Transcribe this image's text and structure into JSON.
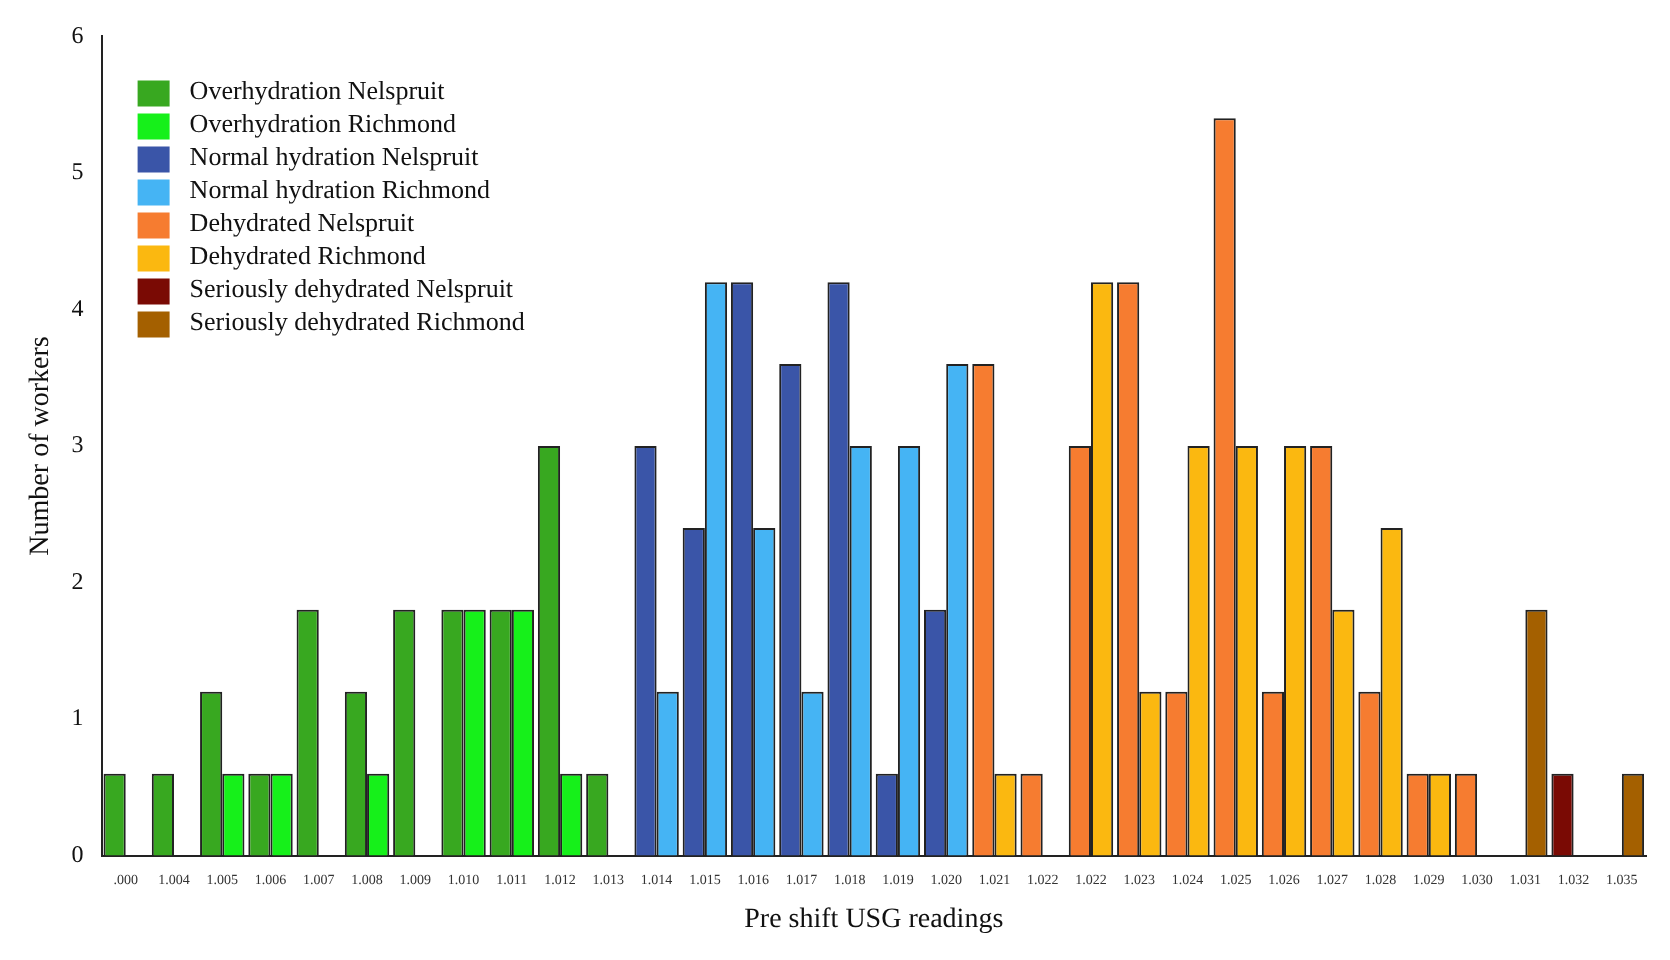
{
  "chart_data": {
    "type": "bar",
    "xlabel": "Pre shift USG readings",
    "ylabel": "Number of workers",
    "categories": [
      ".000",
      "1.004",
      "1.005",
      "1.006",
      "1.007",
      "1.008",
      "1.009",
      "1.010",
      "1.011",
      "1.012",
      "1.013",
      "1.014",
      "1.015",
      "1.016",
      "1.017",
      "1.018",
      "1.019",
      "1.020",
      "1.021",
      "1.022",
      "1.022",
      "1.023",
      "1.024",
      "1.025",
      "1.026",
      "1.027",
      "1.028",
      "1.029",
      "1.030",
      "1.031",
      "1.032",
      "1.035"
    ],
    "series": [
      {
        "name": "Overhydration Nelspruit",
        "color": "#38a820",
        "values": [
          0.6,
          0.6,
          1.2,
          0.6,
          1.8,
          1.2,
          1.8,
          1.8,
          1.8,
          3,
          0.6,
          null,
          null,
          null,
          null,
          null,
          null,
          null,
          null,
          null,
          null,
          null,
          null,
          null,
          null,
          null,
          null,
          null,
          null,
          null,
          null,
          null
        ]
      },
      {
        "name": "Overhydration Richmond",
        "color": "#16f01a",
        "values": [
          0,
          0,
          0.6,
          0.6,
          0,
          0.6,
          0,
          1.8,
          1.8,
          0.6,
          0,
          null,
          null,
          null,
          null,
          null,
          null,
          null,
          null,
          null,
          null,
          null,
          null,
          null,
          null,
          null,
          null,
          null,
          null,
          null,
          null,
          null
        ]
      },
      {
        "name": "Normal hydration Nelspruit",
        "color": "#3a55a8",
        "values": [
          null,
          null,
          null,
          null,
          null,
          null,
          null,
          null,
          null,
          null,
          null,
          3,
          2.4,
          4.2,
          3.6,
          4.2,
          0.6,
          1.8,
          null,
          null,
          null,
          null,
          null,
          null,
          null,
          null,
          null,
          null,
          null,
          null,
          null,
          null
        ]
      },
      {
        "name": "Normal hydration Richmond",
        "color": "#45b4f4",
        "values": [
          null,
          null,
          null,
          null,
          null,
          null,
          null,
          null,
          null,
          null,
          null,
          1.2,
          4.2,
          2.4,
          1.2,
          3,
          3,
          3.6,
          null,
          null,
          null,
          null,
          null,
          null,
          null,
          null,
          null,
          null,
          null,
          null,
          null,
          null
        ]
      },
      {
        "name": "Dehydrated Nelspruit",
        "color": "#f67c30",
        "values": [
          null,
          null,
          null,
          null,
          null,
          null,
          null,
          null,
          null,
          null,
          null,
          null,
          null,
          null,
          null,
          null,
          null,
          null,
          3.6,
          0.6,
          3,
          4.2,
          1.2,
          5.4,
          1.2,
          3,
          1.2,
          0.6,
          0.6,
          null,
          null,
          null
        ]
      },
      {
        "name": "Dehydrated Richmond",
        "color": "#fbb810",
        "values": [
          null,
          null,
          null,
          null,
          null,
          null,
          null,
          null,
          null,
          null,
          null,
          null,
          null,
          null,
          null,
          null,
          null,
          null,
          0.6,
          0,
          4.2,
          1.2,
          3,
          3,
          3,
          1.8,
          2.4,
          0.6,
          0,
          null,
          null,
          null
        ]
      },
      {
        "name": "Seriously dehydrated Nelspruit",
        "color": "#7a0a04",
        "values": [
          null,
          null,
          null,
          null,
          null,
          null,
          null,
          null,
          null,
          null,
          null,
          null,
          null,
          null,
          null,
          null,
          null,
          null,
          null,
          null,
          null,
          null,
          null,
          null,
          null,
          null,
          null,
          null,
          null,
          0,
          0.6,
          0
        ]
      },
      {
        "name": "Seriously dehydrated Richmond",
        "color": "#a46000",
        "values": [
          null,
          null,
          null,
          null,
          null,
          null,
          null,
          null,
          null,
          null,
          null,
          null,
          null,
          null,
          null,
          null,
          null,
          null,
          null,
          null,
          null,
          null,
          null,
          null,
          null,
          null,
          null,
          null,
          null,
          1.8,
          0,
          0.6
        ]
      }
    ],
    "ylim": [
      0,
      6
    ],
    "yticks": [
      0,
      1,
      2,
      3,
      4,
      5,
      6
    ],
    "grid": false,
    "legend": "top left"
  }
}
